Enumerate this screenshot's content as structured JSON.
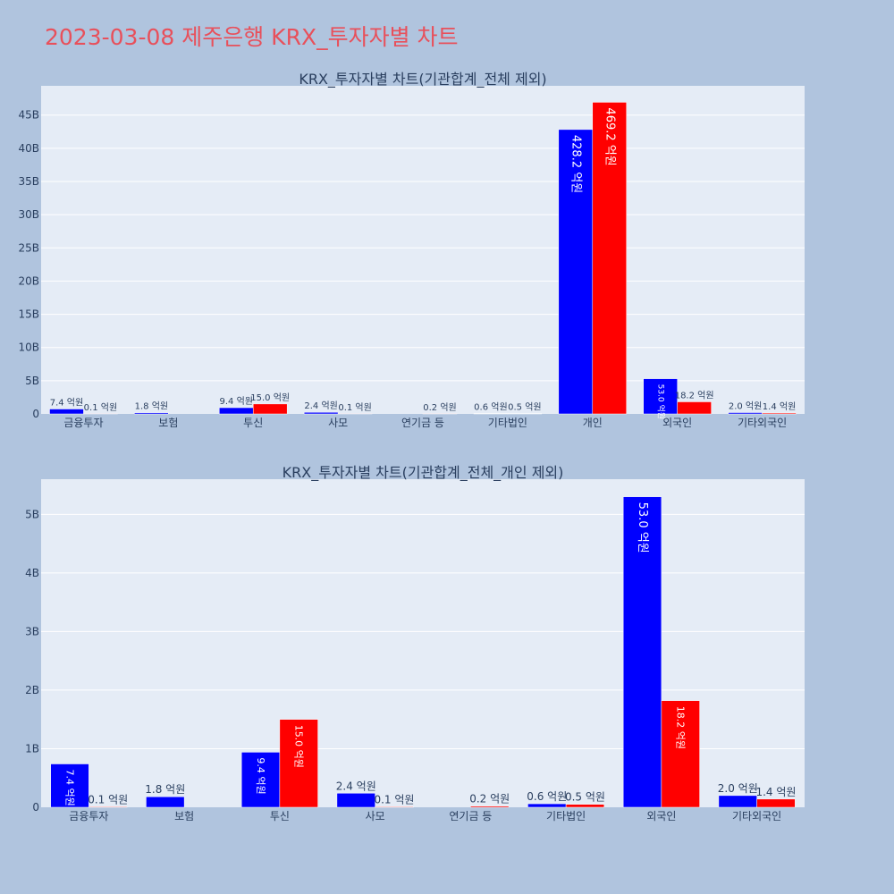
{
  "page": {
    "title": "2023-03-08 제주은행 KRX_투자자별 차트"
  },
  "colors": {
    "background": "#b0c4de",
    "plot_background": "#e5ecf6",
    "gridline": "#ffffff",
    "title": "#e8505b",
    "text": "#2a3f5f",
    "buy": "#0000ff",
    "sell": "#ff0000"
  },
  "chart_data": [
    {
      "type": "bar",
      "title": "KRX_투자자별 차트(기관합계_전체 제외)",
      "categories": [
        "금융투자",
        "보험",
        "투신",
        "사모",
        "연기금 등",
        "기타법인",
        "개인",
        "외국인",
        "기타외국인"
      ],
      "series": [
        {
          "color": "#0000ff",
          "values": [
            740000000,
            180000000,
            940000000,
            240000000,
            0,
            60000000,
            42820000000,
            5300000000,
            200000000
          ],
          "labels": [
            "7.4 억원",
            "1.8 억원",
            "9.4 억원",
            "2.4 억원",
            "",
            "0.6 억원",
            "428.2 억원",
            "53.0 억원",
            "2.0 억원"
          ]
        },
        {
          "color": "#ff0000",
          "values": [
            10000000,
            0,
            1500000000,
            10000000,
            20000000,
            50000000,
            46920000000,
            1820000000,
            140000000
          ],
          "labels": [
            "0.1 억원",
            "",
            "15.0 억원",
            "0.1 억원",
            "0.2 억원",
            "0.5 억원",
            "469.2 억원",
            "18.2 억원",
            "1.4 억원"
          ]
        }
      ],
      "yticks": [
        0,
        5000000000,
        10000000000,
        15000000000,
        20000000000,
        25000000000,
        30000000000,
        35000000000,
        40000000000,
        45000000000
      ],
      "ytick_labels": [
        "0",
        "5B",
        "10B",
        "15B",
        "20B",
        "25B",
        "30B",
        "35B",
        "40B",
        "45B"
      ],
      "ylim": [
        0,
        49400000000
      ],
      "grid": true
    },
    {
      "type": "bar",
      "title": "KRX_투자자별 차트(기관합계_전체_개인 제외)",
      "categories": [
        "금융투자",
        "보험",
        "투신",
        "사모",
        "연기금 등",
        "기타법인",
        "외국인",
        "기타외국인"
      ],
      "series": [
        {
          "color": "#0000ff",
          "values": [
            740000000,
            180000000,
            940000000,
            240000000,
            0,
            60000000,
            5300000000,
            200000000
          ],
          "labels": [
            "7.4 억원",
            "1.8 억원",
            "9.4 억원",
            "2.4 억원",
            "",
            "0.6 억원",
            "53.0 억원",
            "2.0 억원"
          ]
        },
        {
          "color": "#ff0000",
          "values": [
            10000000,
            0,
            1500000000,
            10000000,
            20000000,
            50000000,
            1820000000,
            140000000
          ],
          "labels": [
            "0.1 억원",
            "",
            "15.0 억원",
            "0.1 억원",
            "0.2 억원",
            "0.5 억원",
            "18.2 억원",
            "1.4 억원"
          ]
        }
      ],
      "yticks": [
        0,
        1000000000,
        2000000000,
        3000000000,
        4000000000,
        5000000000
      ],
      "ytick_labels": [
        "0",
        "1B",
        "2B",
        "3B",
        "4B",
        "5B"
      ],
      "ylim": [
        0,
        5600000000
      ],
      "grid": true
    }
  ]
}
